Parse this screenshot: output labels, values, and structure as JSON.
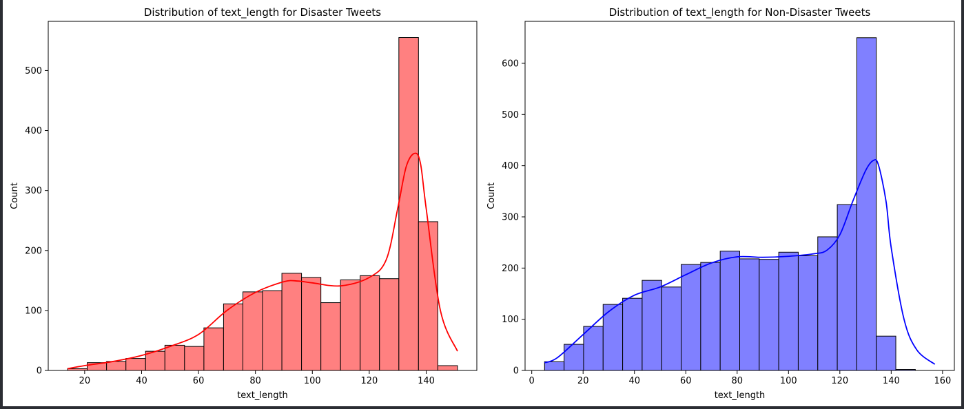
{
  "chart_data": [
    {
      "type": "bar",
      "title": "Distribution of text_length for Disaster Tweets",
      "xlabel": "text_length",
      "ylabel": "Count",
      "xlim": [
        7.2,
        157.8
      ],
      "ylim": [
        0,
        582
      ],
      "xticks": [
        20,
        40,
        60,
        80,
        100,
        120,
        140
      ],
      "yticks": [
        0,
        100,
        200,
        300,
        400,
        500
      ],
      "bins": [
        {
          "x0": 14.0,
          "x1": 20.9,
          "count": 3
        },
        {
          "x0": 20.9,
          "x1": 27.7,
          "count": 13
        },
        {
          "x0": 27.7,
          "x1": 34.5,
          "count": 15
        },
        {
          "x0": 34.5,
          "x1": 41.4,
          "count": 20
        },
        {
          "x0": 41.4,
          "x1": 48.2,
          "count": 32
        },
        {
          "x0": 48.2,
          "x1": 55.1,
          "count": 42
        },
        {
          "x0": 55.1,
          "x1": 61.9,
          "count": 40
        },
        {
          "x0": 61.9,
          "x1": 68.8,
          "count": 71
        },
        {
          "x0": 68.8,
          "x1": 75.6,
          "count": 111
        },
        {
          "x0": 75.6,
          "x1": 82.5,
          "count": 131
        },
        {
          "x0": 82.5,
          "x1": 89.3,
          "count": 133
        },
        {
          "x0": 89.3,
          "x1": 96.2,
          "count": 162
        },
        {
          "x0": 96.2,
          "x1": 103.0,
          "count": 155
        },
        {
          "x0": 103.0,
          "x1": 109.9,
          "count": 113
        },
        {
          "x0": 109.9,
          "x1": 116.8,
          "count": 151
        },
        {
          "x0": 116.8,
          "x1": 123.6,
          "count": 158
        },
        {
          "x0": 123.6,
          "x1": 130.4,
          "count": 153
        },
        {
          "x0": 130.4,
          "x1": 137.3,
          "count": 555
        },
        {
          "x0": 137.3,
          "x1": 144.1,
          "count": 248
        },
        {
          "x0": 144.1,
          "x1": 151.0,
          "count": 8
        }
      ],
      "kde": {
        "x": [
          14,
          20,
          30,
          40,
          50,
          60,
          70,
          80,
          90,
          95,
          100,
          110,
          120,
          126,
          130,
          133,
          136,
          138,
          140,
          145,
          151
        ],
        "y": [
          3,
          8,
          15,
          25,
          40,
          60,
          100,
          130,
          148,
          149,
          146,
          141,
          155,
          185,
          270,
          340,
          362,
          345,
          270,
          100,
          32
        ]
      },
      "colors": {
        "fill": "#ff8080",
        "edge": "#000000",
        "kde": "#ff0000"
      }
    },
    {
      "type": "bar",
      "title": "Distribution of text_length for Non-Disaster Tweets",
      "xlabel": "text_length",
      "ylabel": "Count",
      "xlim": [
        -2.6,
        164.6
      ],
      "ylim": [
        0,
        682
      ],
      "xticks": [
        0,
        20,
        40,
        60,
        80,
        100,
        120,
        140,
        160
      ],
      "yticks": [
        0,
        100,
        200,
        300,
        400,
        500,
        600
      ],
      "bins": [
        {
          "x0": 5.0,
          "x1": 12.6,
          "count": 17
        },
        {
          "x0": 12.6,
          "x1": 20.2,
          "count": 51
        },
        {
          "x0": 20.2,
          "x1": 27.8,
          "count": 86
        },
        {
          "x0": 27.8,
          "x1": 35.4,
          "count": 129
        },
        {
          "x0": 35.4,
          "x1": 43.0,
          "count": 141
        },
        {
          "x0": 43.0,
          "x1": 50.6,
          "count": 176
        },
        {
          "x0": 50.6,
          "x1": 58.2,
          "count": 163
        },
        {
          "x0": 58.2,
          "x1": 65.8,
          "count": 207
        },
        {
          "x0": 65.8,
          "x1": 73.4,
          "count": 211
        },
        {
          "x0": 73.4,
          "x1": 81.0,
          "count": 233
        },
        {
          "x0": 81.0,
          "x1": 88.6,
          "count": 218
        },
        {
          "x0": 88.6,
          "x1": 96.2,
          "count": 217
        },
        {
          "x0": 96.2,
          "x1": 103.8,
          "count": 231
        },
        {
          "x0": 103.8,
          "x1": 111.4,
          "count": 224
        },
        {
          "x0": 111.4,
          "x1": 119.0,
          "count": 261
        },
        {
          "x0": 119.0,
          "x1": 126.6,
          "count": 324
        },
        {
          "x0": 126.6,
          "x1": 134.2,
          "count": 650
        },
        {
          "x0": 134.2,
          "x1": 141.8,
          "count": 67
        },
        {
          "x0": 141.8,
          "x1": 149.4,
          "count": 2
        }
      ],
      "kde": {
        "x": [
          5,
          10,
          20,
          30,
          40,
          50,
          60,
          70,
          80,
          90,
          100,
          110,
          115,
          120,
          125,
          130,
          133,
          135,
          138,
          140,
          145,
          150,
          157
        ],
        "y": [
          15,
          25,
          70,
          115,
          147,
          163,
          187,
          210,
          222,
          221,
          223,
          228,
          235,
          265,
          330,
          390,
          410,
          402,
          330,
          240,
          100,
          40,
          12
        ]
      },
      "colors": {
        "fill": "#8080ff",
        "edge": "#000000",
        "kde": "#0000ff"
      }
    }
  ]
}
